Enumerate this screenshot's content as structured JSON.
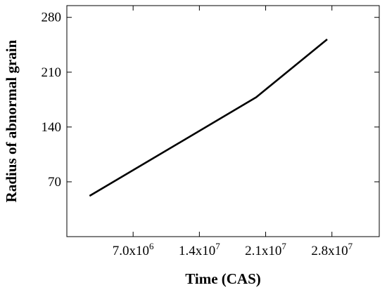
{
  "chart_data": {
    "type": "line",
    "title": "",
    "xlabel": "Time (CAS)",
    "ylabel": "Radius of abnormal grain",
    "xlim": [
      0,
      33000000
    ],
    "ylim": [
      0,
      295
    ],
    "x_ticks": [
      {
        "value": 7000000,
        "mantissa": "7.0x10",
        "exponent": "6"
      },
      {
        "value": 14000000,
        "mantissa": "1.4x10",
        "exponent": "7"
      },
      {
        "value": 21000000,
        "mantissa": "2.1x10",
        "exponent": "7"
      },
      {
        "value": 28000000,
        "mantissa": "2.8x10",
        "exponent": "7"
      }
    ],
    "y_ticks": [
      70,
      140,
      210,
      280
    ],
    "grid": false,
    "series": [
      {
        "color": "#000000",
        "x": [
          2400000,
          20000000,
          27500000
        ],
        "y": [
          52,
          178,
          252
        ]
      }
    ]
  }
}
